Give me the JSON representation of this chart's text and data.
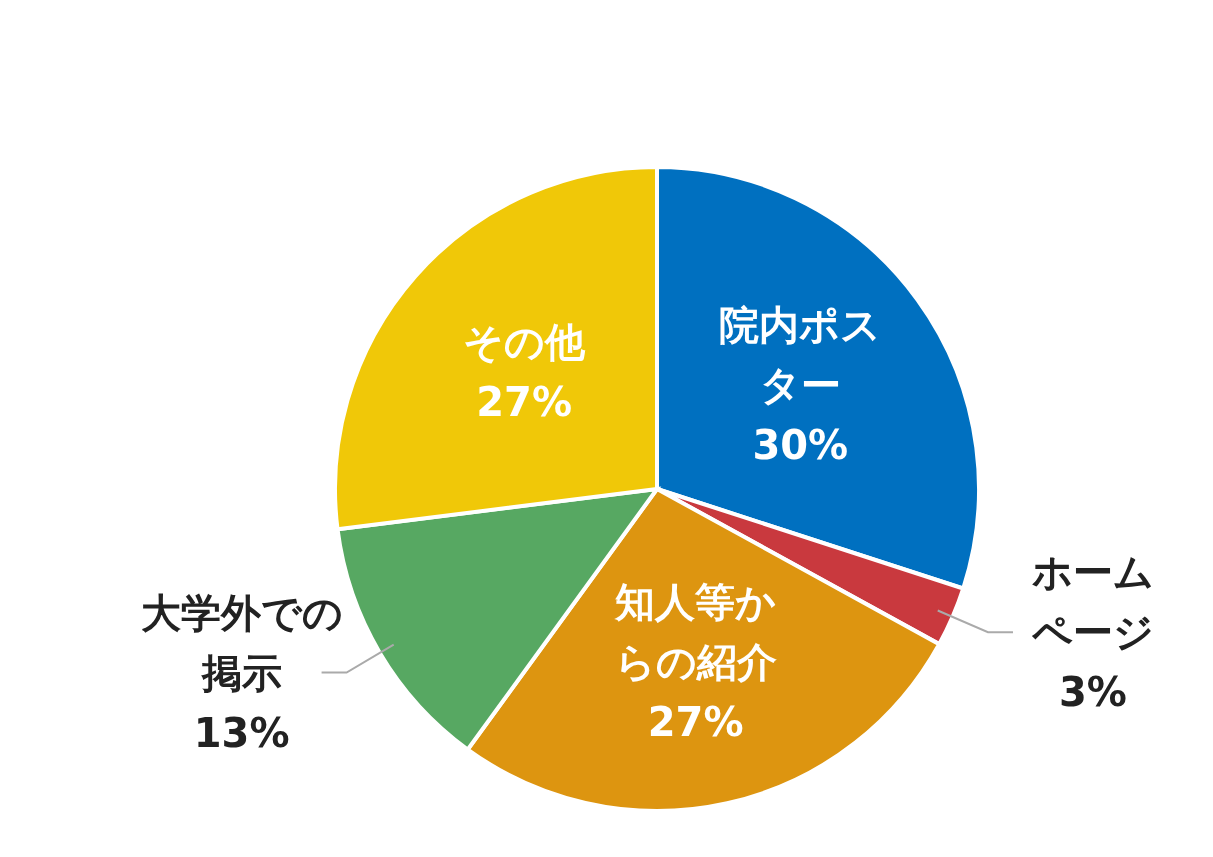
{
  "chart_data": {
    "type": "pie",
    "categories": [
      "院内ポスター",
      "ホームページ",
      "知人等からの紹介",
      "大学外での掲示",
      "その他"
    ],
    "values": [
      30,
      3,
      27,
      13,
      27
    ],
    "colors": [
      "#0070c0",
      "#c9393e",
      "#dd9510",
      "#57a862",
      "#f0c808"
    ],
    "value_labels": [
      "30%",
      "3%",
      "27%",
      "13%",
      "27%"
    ]
  }
}
